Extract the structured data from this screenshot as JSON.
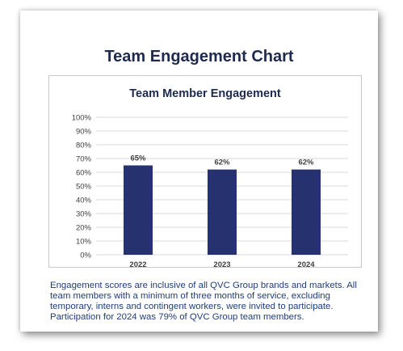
{
  "card": {
    "title": "Team Engagement Chart",
    "note": "Engagement scores are inclusive of all QVC Group brands and markets. All team members with a minimum of three months of service, excluding temporary, interns and contingent workers, were invited to participate. Participation for 2024 was 79% of QVC Group team members."
  },
  "chart_data": {
    "type": "bar",
    "title": "Team Member Engagement",
    "categories": [
      "2022",
      "2023",
      "2024"
    ],
    "values": [
      65,
      62,
      62
    ],
    "data_labels": [
      "65%",
      "62%",
      "62%"
    ],
    "y_ticks": [
      "0%",
      "10%",
      "20%",
      "30%",
      "40%",
      "50%",
      "60%",
      "70%",
      "80%",
      "90%",
      "100%"
    ],
    "ylim": [
      0,
      100
    ],
    "xlabel": "",
    "ylabel": "",
    "grid": true,
    "legend": "none",
    "bar_color": "#263270"
  }
}
